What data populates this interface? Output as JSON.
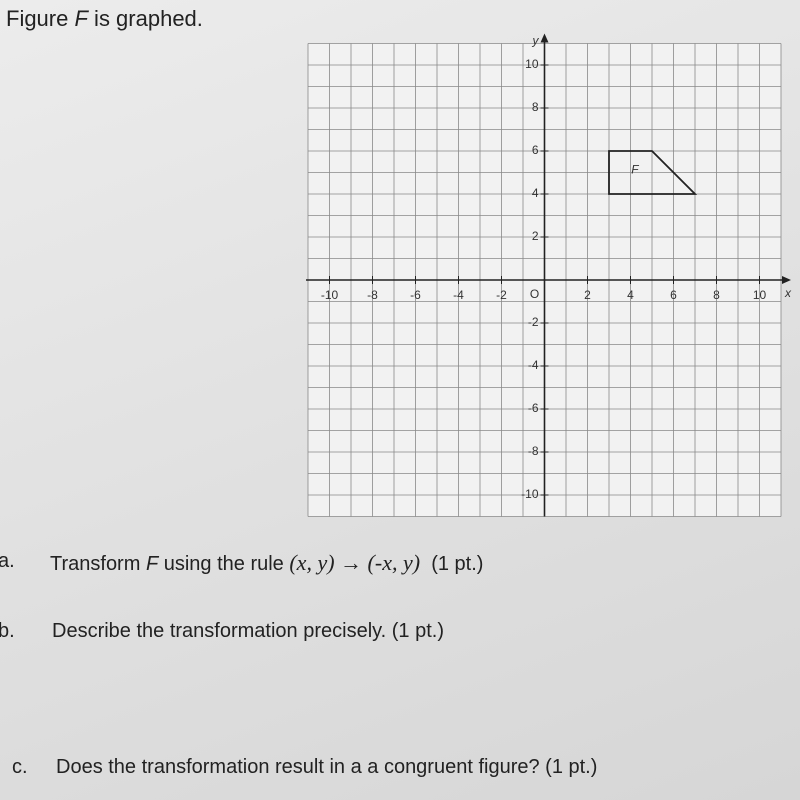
{
  "header": {
    "title_parts": [
      "Figure ",
      "F",
      " is graphed."
    ]
  },
  "graph": {
    "xlim": [
      -11,
      11
    ],
    "ylim": [
      -11,
      11
    ],
    "xticks": [
      -10,
      -8,
      -6,
      -4,
      -2,
      2,
      4,
      6,
      8,
      10
    ],
    "yticks": [
      10,
      8,
      6,
      4,
      2,
      -2,
      -4,
      -6,
      -8,
      -10
    ],
    "origin_label": "O",
    "x_label": "x",
    "y_label": "y",
    "figure": {
      "label": "F",
      "vertices": [
        [
          3,
          4
        ],
        [
          3,
          6
        ],
        [
          5,
          6
        ],
        [
          7,
          4
        ]
      ]
    }
  },
  "questions": [
    {
      "letter": "a.",
      "parts": [
        "Transform ",
        "F",
        " using the rule ",
        "(x, y) → (-x, y)",
        "(1 pt.)"
      ]
    },
    {
      "letter": "b.",
      "parts": [
        "Describe the transformation precisely. (1 pt.)"
      ]
    },
    {
      "letter": "c.",
      "parts": [
        "Does the transformation result in a a congruent figure? (1 pt.)"
      ]
    }
  ]
}
